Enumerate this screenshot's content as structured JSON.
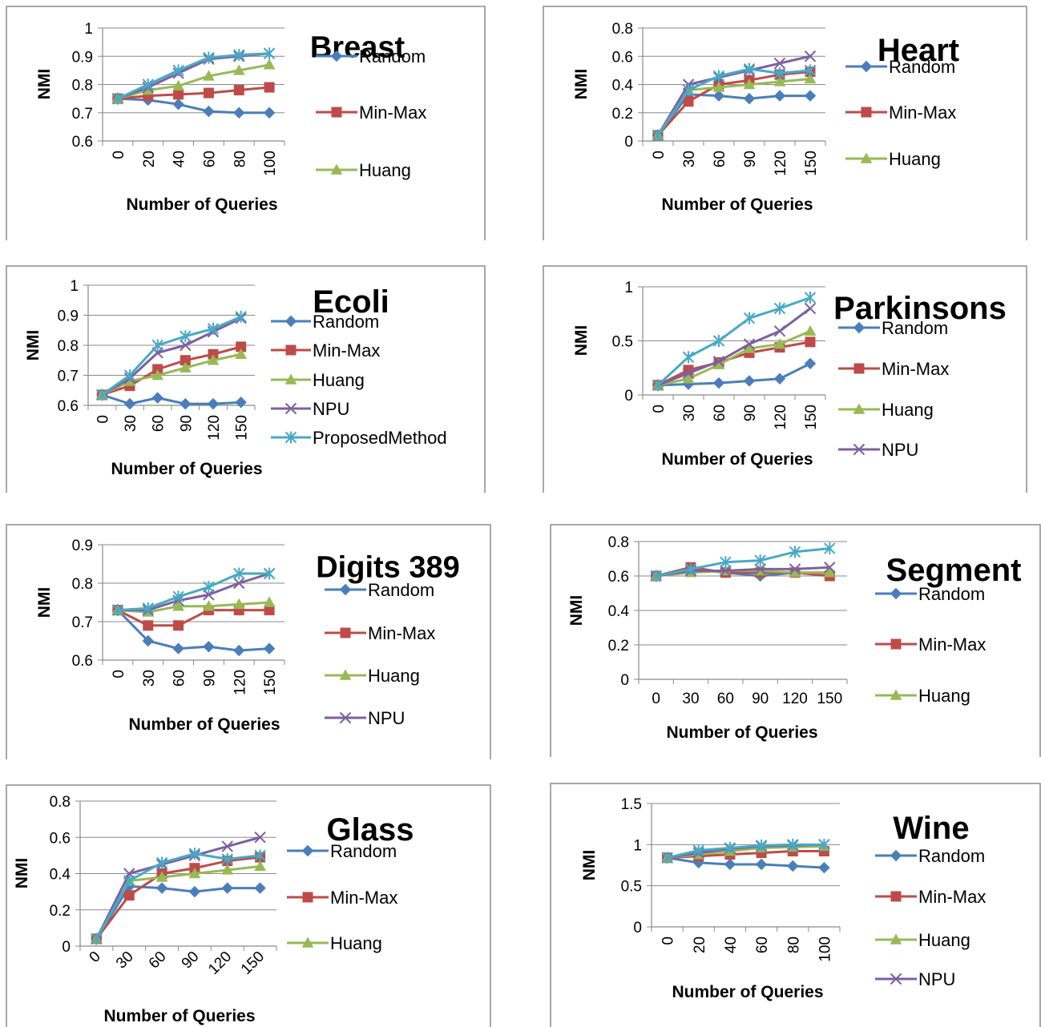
{
  "chart_data": [
    {
      "type": "line",
      "title": "Breast",
      "xlabel": "Number of Queries",
      "ylabel": "NMI",
      "categories": [
        "0",
        "20",
        "40",
        "60",
        "80",
        "100"
      ],
      "y_ticks": [
        "0.6",
        "0.7",
        "0.8",
        "0.9",
        "1"
      ],
      "ylim": [
        0.6,
        1.0
      ],
      "legend": [
        "Random",
        "Min-Max",
        "Huang"
      ],
      "series": [
        {
          "name": "Random",
          "values": [
            0.75,
            0.745,
            0.73,
            0.705,
            0.7,
            0.7
          ]
        },
        {
          "name": "Min-Max",
          "values": [
            0.75,
            0.76,
            0.765,
            0.77,
            0.78,
            0.79
          ]
        },
        {
          "name": "Huang",
          "values": [
            0.75,
            0.78,
            0.795,
            0.83,
            0.85,
            0.87
          ]
        },
        {
          "name": "NPU",
          "values": [
            0.75,
            0.79,
            0.84,
            0.89,
            0.9,
            0.91
          ]
        },
        {
          "name": "ProposedMethod",
          "values": [
            0.75,
            0.8,
            0.85,
            0.895,
            0.905,
            0.91
          ]
        }
      ]
    },
    {
      "type": "line",
      "title": "Heart",
      "xlabel": "Number of Queries",
      "ylabel": "NMI",
      "categories": [
        "0",
        "30",
        "60",
        "90",
        "120",
        "150"
      ],
      "y_ticks": [
        "0",
        "0.2",
        "0.4",
        "0.6",
        "0.8"
      ],
      "ylim": [
        0,
        0.8
      ],
      "legend": [
        "Random",
        "Min-Max",
        "Huang"
      ],
      "series": [
        {
          "name": "Random",
          "values": [
            0.04,
            0.33,
            0.32,
            0.3,
            0.32,
            0.32
          ]
        },
        {
          "name": "Min-Max",
          "values": [
            0.04,
            0.28,
            0.4,
            0.43,
            0.47,
            0.49
          ]
        },
        {
          "name": "Huang",
          "values": [
            0.04,
            0.36,
            0.38,
            0.4,
            0.42,
            0.44
          ]
        },
        {
          "name": "NPU",
          "values": [
            0.04,
            0.4,
            0.45,
            0.5,
            0.55,
            0.6
          ]
        },
        {
          "name": "ProposedMethod",
          "values": [
            0.04,
            0.36,
            0.46,
            0.51,
            0.48,
            0.5
          ]
        }
      ]
    },
    {
      "type": "line",
      "title": "Ecoli",
      "xlabel": "Number of Queries",
      "ylabel": "NMI",
      "categories": [
        "0",
        "30",
        "60",
        "90",
        "120",
        "150"
      ],
      "y_ticks": [
        "0.6",
        "0.7",
        "0.8",
        "0.9",
        "1"
      ],
      "ylim": [
        0.6,
        1.0
      ],
      "legend": [
        "Random",
        "Min-Max",
        "Huang",
        "NPU",
        "ProposedMethod"
      ],
      "series": [
        {
          "name": "Random",
          "values": [
            0.635,
            0.605,
            0.625,
            0.605,
            0.605,
            0.61
          ]
        },
        {
          "name": "Min-Max",
          "values": [
            0.635,
            0.665,
            0.72,
            0.75,
            0.77,
            0.795
          ]
        },
        {
          "name": "Huang",
          "values": [
            0.635,
            0.68,
            0.7,
            0.725,
            0.75,
            0.77
          ]
        },
        {
          "name": "NPU",
          "values": [
            0.635,
            0.69,
            0.775,
            0.8,
            0.845,
            0.89
          ]
        },
        {
          "name": "ProposedMethod",
          "values": [
            0.635,
            0.7,
            0.8,
            0.83,
            0.855,
            0.895
          ]
        }
      ]
    },
    {
      "type": "line",
      "title": "Parkinsons",
      "xlabel": "Number of Queries",
      "ylabel": "NMI",
      "categories": [
        "0",
        "30",
        "60",
        "90",
        "120",
        "150"
      ],
      "y_ticks": [
        "0",
        "0.5",
        "1"
      ],
      "ylim": [
        0,
        1.0
      ],
      "legend": [
        "Random",
        "Min-Max",
        "Huang",
        "NPU"
      ],
      "series": [
        {
          "name": "Random",
          "values": [
            0.09,
            0.1,
            0.11,
            0.13,
            0.15,
            0.29
          ]
        },
        {
          "name": "Min-Max",
          "values": [
            0.09,
            0.23,
            0.3,
            0.39,
            0.44,
            0.49
          ]
        },
        {
          "name": "Huang",
          "values": [
            0.09,
            0.15,
            0.28,
            0.43,
            0.47,
            0.59
          ]
        },
        {
          "name": "NPU",
          "values": [
            0.09,
            0.2,
            0.31,
            0.47,
            0.59,
            0.8
          ]
        },
        {
          "name": "ProposedMethod",
          "values": [
            0.09,
            0.35,
            0.5,
            0.71,
            0.8,
            0.9
          ]
        }
      ]
    },
    {
      "type": "line",
      "title": "Digits 389",
      "xlabel": "Number of Queries",
      "ylabel": "NMI",
      "categories": [
        "0",
        "30",
        "60",
        "90",
        "120",
        "150"
      ],
      "y_ticks": [
        "0.6",
        "0.7",
        "0.8",
        "0.9"
      ],
      "ylim": [
        0.6,
        0.9
      ],
      "legend": [
        "Random",
        "Min-Max",
        "Huang",
        "NPU"
      ],
      "series": [
        {
          "name": "Random",
          "values": [
            0.73,
            0.65,
            0.63,
            0.635,
            0.625,
            0.63
          ]
        },
        {
          "name": "Min-Max",
          "values": [
            0.73,
            0.69,
            0.69,
            0.73,
            0.73,
            0.73
          ]
        },
        {
          "name": "Huang",
          "values": [
            0.73,
            0.725,
            0.74,
            0.74,
            0.745,
            0.75
          ]
        },
        {
          "name": "NPU",
          "values": [
            0.73,
            0.73,
            0.755,
            0.77,
            0.8,
            0.825
          ]
        },
        {
          "name": "ProposedMethod",
          "values": [
            0.73,
            0.735,
            0.765,
            0.79,
            0.825,
            0.825
          ]
        }
      ]
    },
    {
      "type": "line",
      "title": "Segment",
      "xlabel": "Number of Queries",
      "ylabel": "NMI",
      "categories": [
        "0",
        "30",
        "60",
        "90",
        "120",
        "150"
      ],
      "y_ticks": [
        "0",
        "0.2",
        "0.4",
        "0.6",
        "0.8"
      ],
      "ylim": [
        0,
        0.8
      ],
      "legend": [
        "Random",
        "Min-Max",
        "Huang"
      ],
      "series": [
        {
          "name": "Random",
          "values": [
            0.6,
            0.64,
            0.62,
            0.6,
            0.62,
            0.62
          ]
        },
        {
          "name": "Min-Max",
          "values": [
            0.6,
            0.65,
            0.62,
            0.62,
            0.62,
            0.6
          ]
        },
        {
          "name": "Huang",
          "values": [
            0.6,
            0.62,
            0.63,
            0.63,
            0.62,
            0.62
          ]
        },
        {
          "name": "NPU",
          "values": [
            0.6,
            0.63,
            0.63,
            0.64,
            0.64,
            0.65
          ]
        },
        {
          "name": "ProposedMethod",
          "values": [
            0.6,
            0.64,
            0.68,
            0.69,
            0.74,
            0.76
          ]
        }
      ]
    },
    {
      "type": "line",
      "title": "Glass",
      "xlabel": "Number of Queries",
      "ylabel": "NMI",
      "categories": [
        "0",
        "30",
        "60",
        "90",
        "120",
        "150"
      ],
      "y_ticks": [
        "0",
        "0.2",
        "0.4",
        "0.6",
        "0.8"
      ],
      "ylim": [
        0,
        0.8
      ],
      "legend": [
        "Random",
        "Min-Max",
        "Huang"
      ],
      "series": [
        {
          "name": "Random",
          "values": [
            0.04,
            0.33,
            0.32,
            0.3,
            0.32,
            0.32
          ]
        },
        {
          "name": "Min-Max",
          "values": [
            0.04,
            0.28,
            0.4,
            0.43,
            0.47,
            0.49
          ]
        },
        {
          "name": "Huang",
          "values": [
            0.04,
            0.36,
            0.38,
            0.4,
            0.42,
            0.44
          ]
        },
        {
          "name": "NPU",
          "values": [
            0.04,
            0.4,
            0.45,
            0.5,
            0.55,
            0.6
          ]
        },
        {
          "name": "ProposedMethod",
          "values": [
            0.04,
            0.36,
            0.46,
            0.51,
            0.48,
            0.5
          ]
        }
      ]
    },
    {
      "type": "line",
      "title": "Wine",
      "xlabel": "Number of Queries",
      "ylabel": "NMI",
      "categories": [
        "0",
        "20",
        "40",
        "60",
        "80",
        "100"
      ],
      "y_ticks": [
        "0",
        "0.5",
        "1",
        "1.5"
      ],
      "ylim": [
        0,
        1.5
      ],
      "legend": [
        "Random",
        "Min-Max",
        "Huang",
        "NPU"
      ],
      "series": [
        {
          "name": "Random",
          "values": [
            0.84,
            0.78,
            0.76,
            0.76,
            0.74,
            0.72
          ]
        },
        {
          "name": "Min-Max",
          "values": [
            0.84,
            0.86,
            0.88,
            0.9,
            0.92,
            0.92
          ]
        },
        {
          "name": "Huang",
          "values": [
            0.84,
            0.88,
            0.92,
            0.96,
            0.97,
            0.98
          ]
        },
        {
          "name": "NPU",
          "values": [
            0.84,
            0.9,
            0.95,
            0.98,
            0.99,
            1.0
          ]
        },
        {
          "name": "ProposedMethod",
          "values": [
            0.84,
            0.93,
            0.96,
            0.99,
            1.0,
            1.0
          ]
        }
      ]
    }
  ],
  "series_colors": {
    "Random": "#4a7ebb",
    "Min-Max": "#be4b48",
    "Huang": "#98b954",
    "NPU": "#7d60a0",
    "ProposedMethod": "#46aac5"
  },
  "series_markers": {
    "Random": "diamond",
    "Min-Max": "square",
    "Huang": "triangle",
    "NPU": "x",
    "ProposedMethod": "star"
  }
}
